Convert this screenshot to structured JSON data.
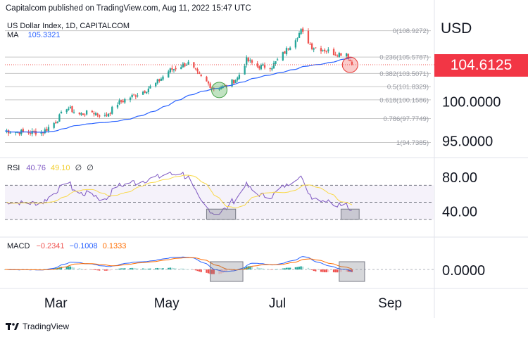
{
  "header": {
    "published": "Capitalcom published on TradingView.com, Aug 11, 2022 15:47 UTC"
  },
  "main_legend": {
    "symbol": "US Dollar Index, 1D, CAPITALCOM",
    "ma_label": "MA",
    "ma_value": "105.3321"
  },
  "rsi_legend": {
    "label": "RSI",
    "v1": "40.76",
    "v2": "49.10"
  },
  "macd_legend": {
    "label": "MACD",
    "v1": "−0.2341",
    "v2": "−0.1008",
    "v3": "0.1333"
  },
  "axis": {
    "currency": "USD",
    "last_price": "104.6125",
    "price_ticks": [
      "100.0000",
      "95.0000"
    ],
    "rsi_ticks": [
      "80.00",
      "40.00"
    ],
    "macd_ticks": [
      "0.0000"
    ],
    "months": [
      "Mar",
      "May",
      "Jul",
      "Sep"
    ]
  },
  "fib_levels": [
    {
      "label": "0(108.9272)"
    },
    {
      "label": "0.236(105.5787)"
    },
    {
      "label": "0.382(103.5071)"
    },
    {
      "label": "0.5(101.8329)"
    },
    {
      "label": "0.618(100.1586)"
    },
    {
      "label": "0.786(97.7749)"
    },
    {
      "label": "1(94.7385)"
    }
  ],
  "footer": {
    "brand": "TradingView"
  },
  "colors": {
    "up": "#26a69a",
    "down": "#ef5350",
    "ma": "#2962ff",
    "rsi": "#7e57c2",
    "rsi_ma": "#f9d949",
    "macd": "#2962ff",
    "signal": "#ff6d00",
    "badge": "#f23645"
  },
  "chart_data": [
    {
      "type": "candlestick",
      "title": "US Dollar Index, 1D, CAPITALCOM",
      "x_range": [
        "2022-02-01",
        "2022-09-25"
      ],
      "ylim": [
        93.0,
        110.5
      ],
      "last_close": 104.6125,
      "close_path": [
        [
          "2022-02-01",
          96.2
        ],
        [
          "2022-02-15",
          96.0
        ],
        [
          "2022-02-22",
          96.1
        ],
        [
          "2022-03-01",
          97.4
        ],
        [
          "2022-03-07",
          99.2
        ],
        [
          "2022-03-14",
          98.3
        ],
        [
          "2022-03-21",
          98.6
        ],
        [
          "2022-03-28",
          98.0
        ],
        [
          "2022-04-04",
          99.7
        ],
        [
          "2022-04-11",
          100.5
        ],
        [
          "2022-04-18",
          101.2
        ],
        [
          "2022-04-25",
          102.2
        ],
        [
          "2022-05-02",
          103.8
        ],
        [
          "2022-05-09",
          104.5
        ],
        [
          "2022-05-13",
          104.8
        ],
        [
          "2022-05-19",
          103.2
        ],
        [
          "2022-05-27",
          101.6
        ],
        [
          "2022-06-02",
          101.8
        ],
        [
          "2022-06-09",
          102.9
        ],
        [
          "2022-06-14",
          105.2
        ],
        [
          "2022-06-20",
          104.4
        ],
        [
          "2022-06-28",
          104.4
        ],
        [
          "2022-07-05",
          106.2
        ],
        [
          "2022-07-14",
          108.9
        ],
        [
          "2022-07-20",
          106.9
        ],
        [
          "2022-07-27",
          106.5
        ],
        [
          "2022-08-02",
          106.0
        ],
        [
          "2022-08-08",
          106.1
        ],
        [
          "2022-08-11",
          104.6
        ]
      ],
      "fib_retracement": [
        108.9272,
        105.5787,
        103.5071,
        101.8329,
        100.1586,
        97.7749,
        94.7385
      ],
      "ma_value": 105.3321,
      "highlights": [
        {
          "date": "2022-05-30",
          "price": 101.4,
          "color": "green"
        },
        {
          "date": "2022-08-10",
          "price": 104.6,
          "color": "red"
        }
      ]
    },
    {
      "type": "line",
      "title": "RSI",
      "ylim": [
        10,
        100
      ],
      "levels": [
        70,
        50,
        30
      ],
      "last_values": [
        40.76,
        49.1
      ]
    },
    {
      "type": "line",
      "title": "MACD",
      "last_values": [
        -0.2341,
        -0.1008,
        0.1333
      ]
    }
  ]
}
